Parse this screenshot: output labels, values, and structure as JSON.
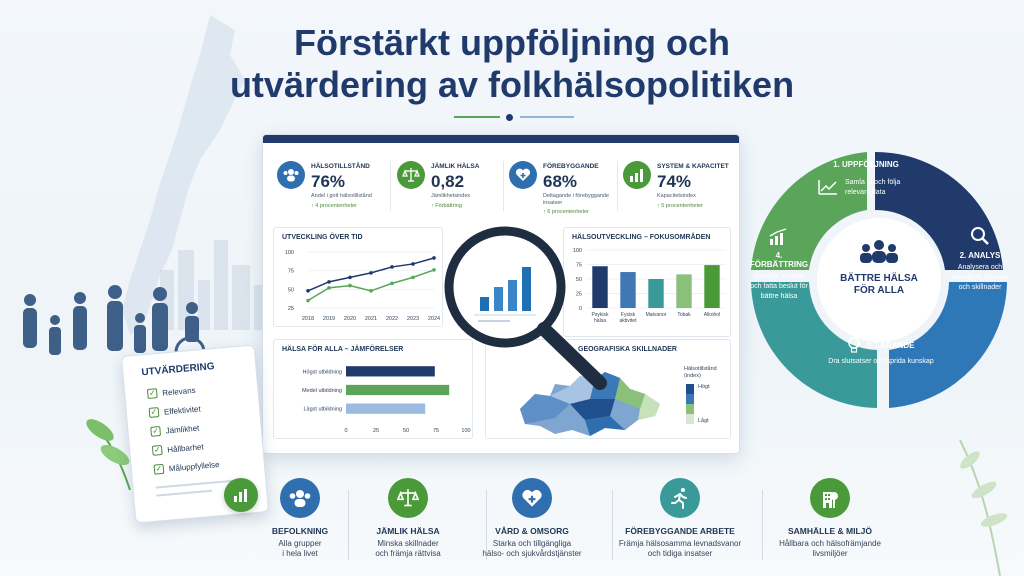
{
  "title": {
    "line1": "Förstärkt uppföljning och",
    "line2": "utvärdering av folkhälsopolitiken"
  },
  "colors": {
    "navy": "#1f3a6b",
    "green": "#5aa55a",
    "light_blue": "#9bbbe0",
    "mid_blue": "#3f78b5",
    "teal": "#3a9a9a",
    "darkgreen": "#4a8a3a"
  },
  "kpis": [
    {
      "icon": "people-icon",
      "label": "HÄLSOTILLSTÅND",
      "value": "76%",
      "sub": "Andel i gott hälsotillstånd",
      "change": "↑ 4 procentenheter"
    },
    {
      "icon": "scales-icon",
      "label": "JÄMLIK HÄLSA",
      "value": "0,82",
      "sub": "Jämlikhetsindex",
      "change": "↑ Förbättring"
    },
    {
      "icon": "heart-plus-icon",
      "label": "FÖREBYGGANDE",
      "value": "68%",
      "sub": "Deltagande i förebyggande insatser",
      "change": "↑ 6 procentenheter"
    },
    {
      "icon": "bar-chart-icon",
      "label": "SYSTEM & KAPACITET",
      "value": "74%",
      "sub": "Kapacitetsindex",
      "change": "↑ 5 procentenheter"
    }
  ],
  "charts": {
    "trend": {
      "title": "UTVECKLING ÖVER TID",
      "chart_data": {
        "type": "line",
        "x": [
          "2018",
          "2019",
          "2020",
          "2021",
          "2022",
          "2023",
          "2024"
        ],
        "yticks": [
          "100",
          "75",
          "50",
          "25"
        ],
        "ylim": [
          25,
          100
        ],
        "series": [
          {
            "color": "#1f3a6b",
            "values": [
              48,
              60,
              66,
              72,
              80,
              84,
              92
            ]
          },
          {
            "color": "#5aa55a",
            "values": [
              35,
              52,
              55,
              48,
              58,
              66,
              76
            ]
          }
        ]
      }
    },
    "focus": {
      "title": "HÄLSOUTVECKLING – FOKUSOMRÅDEN",
      "chart_data": {
        "type": "bar",
        "categories": [
          "Psykisk hälsa",
          "Fysisk aktivitet",
          "Matvanor",
          "Tobak",
          "Alkohol"
        ],
        "values": [
          72,
          62,
          50,
          58,
          74
        ],
        "colors": [
          "#1f3a6b",
          "#3f78b5",
          "#3a9a9a",
          "#8bc07a",
          "#4a9a3a"
        ],
        "yticks": [
          "100",
          "75",
          "50",
          "25",
          "0"
        ],
        "ylim": [
          0,
          100
        ]
      }
    },
    "equity": {
      "title": "HÄLSA FÖR ALLA – JÄMFÖRELSER",
      "chart_data": {
        "type": "bar",
        "categories": [
          "Högst utbildning",
          "Medel utbildning",
          "Lägst utbildning"
        ],
        "values": [
          74,
          86,
          66
        ],
        "colors": [
          "#1f3a6b",
          "#5aa55a",
          "#9bbbe0"
        ],
        "xticks": [
          "0",
          "25",
          "50",
          "75",
          "100"
        ],
        "xlim": [
          0,
          100
        ]
      }
    },
    "geo": {
      "title": "GEOGRAFISKA SKILLNADER",
      "legend_title": "Hälsotillstånd (index)",
      "legend_high": "Högt",
      "legend_low": "Lågt"
    }
  },
  "checklist": {
    "title": "UTVÄRDERING",
    "items": [
      "Relevans",
      "Effektivitet",
      "Jämlikhet",
      "Hållbarhet",
      "Måluppfyllelse"
    ]
  },
  "cycle": {
    "center": "BÄTTRE HÄLSA FÖR ALLA",
    "steps": [
      {
        "title": "1. UPPFÖLJNING",
        "desc": "Samla in och följa relevant data"
      },
      {
        "title": "2. ANALYS",
        "desc": "Analysera och identifiera mönster och skillnader"
      },
      {
        "title": "3. LÄRANDE",
        "desc": "Dra slutsatser och sprida kunskap"
      },
      {
        "title": "4. FÖRBÄTTRING",
        "desc": "Utveckla insatser och fatta beslut för bättre hälsa"
      }
    ]
  },
  "themes": [
    {
      "icon": "people-icon",
      "title": "BEFOLKNING",
      "desc1": "Alla grupper",
      "desc2": "i hela livet",
      "color": "#2f6fb0"
    },
    {
      "icon": "scales-icon",
      "title": "JÄMLIK HÄLSA",
      "desc1": "Minska skillnader",
      "desc2": "och främja rättvisa",
      "color": "#4a9a3a"
    },
    {
      "icon": "heart-plus-icon",
      "title": "VÅRD & OMSORG",
      "desc1": "Starka och tillgängliga",
      "desc2": "hälso- och sjukvårdstjänster",
      "color": "#2f6fb0"
    },
    {
      "icon": "runner-icon",
      "title": "FÖREBYGGANDE ARBETE",
      "desc1": "Främja hälsosamma levnadsvanor",
      "desc2": "och tidiga insatser",
      "color": "#3a9a9a"
    },
    {
      "icon": "building-tree-icon",
      "title": "SAMHÄLLE & MILJÖ",
      "desc1": "Hållbara och hälsofrämjande",
      "desc2": "livsmiljöer",
      "color": "#4a9a3a"
    }
  ]
}
